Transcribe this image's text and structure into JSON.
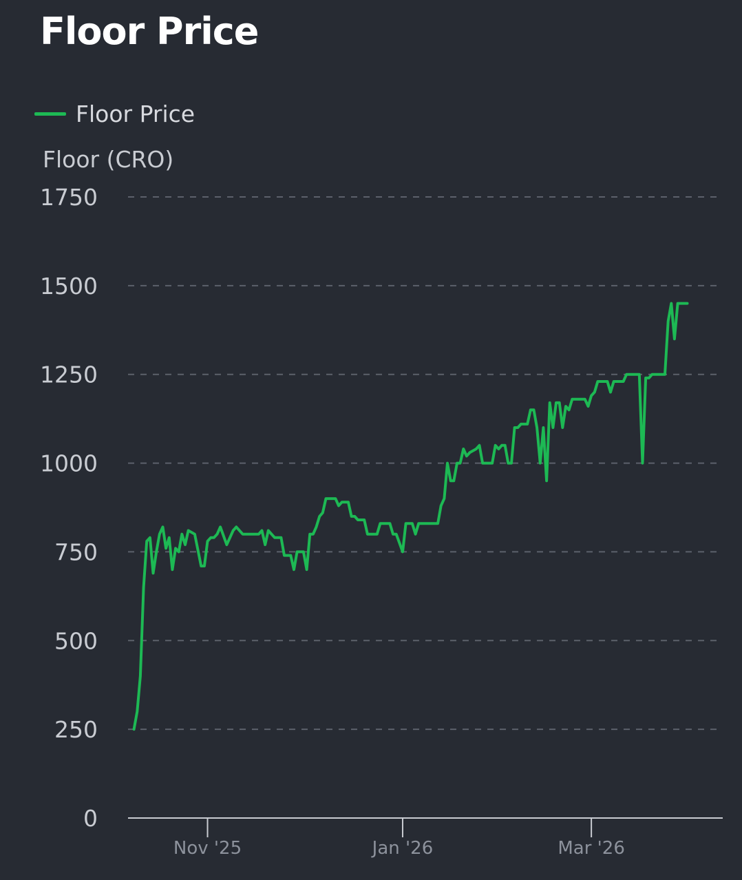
{
  "page": {
    "title": "Floor Price"
  },
  "colors": {
    "background": "#272b33",
    "line": "#1db954",
    "grid": "#5c616b",
    "axis": "#c9ccd2"
  },
  "chart_data": {
    "type": "line",
    "title": "Floor Price",
    "ylabel": "Floor (CRO)",
    "xlabel": "",
    "ylim": [
      0,
      1750
    ],
    "yticks": [
      0,
      250,
      500,
      750,
      1000,
      1250,
      1500,
      1750
    ],
    "xticks": [
      {
        "label": "Nov '25",
        "x": 24
      },
      {
        "label": "Jan '26",
        "x": 85
      },
      {
        "label": "Mar '26",
        "x": 144
      }
    ],
    "xlim": [
      0,
      184
    ],
    "grid": true,
    "legend": "top-left",
    "series": [
      {
        "name": "Floor Price",
        "color": "#1db954",
        "points": [
          [
            1,
            250
          ],
          [
            2,
            300
          ],
          [
            3,
            400
          ],
          [
            4,
            650
          ],
          [
            5,
            780
          ],
          [
            6,
            790
          ],
          [
            7,
            690
          ],
          [
            8,
            750
          ],
          [
            9,
            800
          ],
          [
            10,
            820
          ],
          [
            11,
            760
          ],
          [
            12,
            790
          ],
          [
            13,
            700
          ],
          [
            14,
            760
          ],
          [
            15,
            750
          ],
          [
            16,
            800
          ],
          [
            17,
            770
          ],
          [
            18,
            810
          ],
          [
            20,
            800
          ],
          [
            22,
            710
          ],
          [
            23,
            710
          ],
          [
            24,
            780
          ],
          [
            25,
            790
          ],
          [
            26,
            790
          ],
          [
            27,
            800
          ],
          [
            28,
            820
          ],
          [
            30,
            770
          ],
          [
            32,
            810
          ],
          [
            33,
            820
          ],
          [
            35,
            800
          ],
          [
            38,
            800
          ],
          [
            40,
            800
          ],
          [
            41,
            810
          ],
          [
            42,
            770
          ],
          [
            43,
            810
          ],
          [
            45,
            790
          ],
          [
            47,
            790
          ],
          [
            48,
            740
          ],
          [
            50,
            740
          ],
          [
            51,
            700
          ],
          [
            52,
            750
          ],
          [
            54,
            750
          ],
          [
            55,
            700
          ],
          [
            56,
            800
          ],
          [
            57,
            800
          ],
          [
            58,
            820
          ],
          [
            59,
            850
          ],
          [
            60,
            860
          ],
          [
            61,
            900
          ],
          [
            63,
            900
          ],
          [
            64,
            900
          ],
          [
            65,
            880
          ],
          [
            66,
            890
          ],
          [
            68,
            890
          ],
          [
            69,
            850
          ],
          [
            70,
            850
          ],
          [
            71,
            840
          ],
          [
            73,
            840
          ],
          [
            74,
            800
          ],
          [
            77,
            800
          ],
          [
            78,
            830
          ],
          [
            81,
            830
          ],
          [
            82,
            800
          ],
          [
            83,
            800
          ],
          [
            85,
            750
          ],
          [
            86,
            830
          ],
          [
            88,
            830
          ],
          [
            89,
            800
          ],
          [
            90,
            830
          ],
          [
            91,
            830
          ],
          [
            96,
            830
          ],
          [
            97,
            880
          ],
          [
            98,
            900
          ],
          [
            99,
            1000
          ],
          [
            100,
            950
          ],
          [
            101,
            950
          ],
          [
            102,
            1000
          ],
          [
            103,
            1000
          ],
          [
            104,
            1040
          ],
          [
            105,
            1020
          ],
          [
            106,
            1030
          ],
          [
            108,
            1040
          ],
          [
            109,
            1050
          ],
          [
            110,
            1000
          ],
          [
            112,
            1000
          ],
          [
            113,
            1000
          ],
          [
            114,
            1050
          ],
          [
            115,
            1040
          ],
          [
            116,
            1050
          ],
          [
            117,
            1050
          ],
          [
            118,
            1000
          ],
          [
            119,
            1000
          ],
          [
            120,
            1100
          ],
          [
            121,
            1100
          ],
          [
            122,
            1110
          ],
          [
            124,
            1110
          ],
          [
            125,
            1150
          ],
          [
            126,
            1150
          ],
          [
            127,
            1100
          ],
          [
            128,
            1000
          ],
          [
            129,
            1100
          ],
          [
            130,
            950
          ],
          [
            131,
            1170
          ],
          [
            132,
            1100
          ],
          [
            133,
            1170
          ],
          [
            134,
            1170
          ],
          [
            135,
            1100
          ],
          [
            136,
            1160
          ],
          [
            137,
            1150
          ],
          [
            138,
            1180
          ],
          [
            140,
            1180
          ],
          [
            141,
            1180
          ],
          [
            142,
            1180
          ],
          [
            143,
            1160
          ],
          [
            144,
            1190
          ],
          [
            145,
            1200
          ],
          [
            146,
            1230
          ],
          [
            148,
            1230
          ],
          [
            149,
            1230
          ],
          [
            150,
            1200
          ],
          [
            151,
            1230
          ],
          [
            154,
            1230
          ],
          [
            155,
            1250
          ],
          [
            158,
            1250
          ],
          [
            159,
            1250
          ],
          [
            160,
            1000
          ],
          [
            161,
            1240
          ],
          [
            162,
            1240
          ],
          [
            163,
            1250
          ],
          [
            166,
            1250
          ],
          [
            167,
            1250
          ],
          [
            168,
            1400
          ],
          [
            169,
            1450
          ],
          [
            170,
            1350
          ],
          [
            171,
            1450
          ],
          [
            173,
            1450
          ],
          [
            174,
            1450
          ]
        ]
      }
    ]
  }
}
